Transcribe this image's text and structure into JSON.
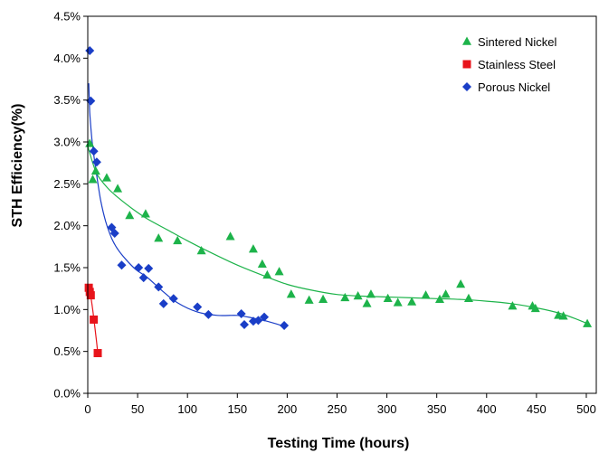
{
  "chart_data": {
    "type": "scatter",
    "title": "",
    "xlabel": "Testing Time (hours)",
    "ylabel": "STH Efficiency(%)",
    "xlim": [
      0,
      510
    ],
    "ylim": [
      0.0,
      4.5
    ],
    "x_ticks": [
      0,
      50,
      100,
      150,
      200,
      250,
      300,
      350,
      400,
      450,
      500
    ],
    "y_ticks": [
      0.0,
      0.5,
      1.0,
      1.5,
      2.0,
      2.5,
      3.0,
      3.5,
      4.0,
      4.5
    ],
    "x_tick_labels": [
      "0",
      "50",
      "100",
      "150",
      "200",
      "250",
      "300",
      "350",
      "400",
      "450",
      "500"
    ],
    "y_tick_labels": [
      "0.0%",
      "0.5%",
      "1.0%",
      "1.5%",
      "2.0%",
      "2.5%",
      "3.0%",
      "3.5%",
      "4.0%",
      "4.5%"
    ],
    "grid": false,
    "legend_position": "top-right",
    "series": [
      {
        "name": "Sintered Nickel",
        "marker": "triangle",
        "color": "#1db34a",
        "x": [
          2,
          5,
          8,
          19,
          30,
          42,
          58,
          71,
          90,
          114,
          143,
          166,
          175,
          180,
          192,
          204,
          222,
          236,
          258,
          271,
          280,
          284,
          301,
          311,
          325,
          339,
          353,
          359,
          374,
          382,
          426,
          446,
          449,
          472,
          477,
          501
        ],
        "y": [
          2.98,
          2.55,
          2.65,
          2.57,
          2.44,
          2.12,
          2.14,
          1.85,
          1.82,
          1.7,
          1.87,
          1.72,
          1.54,
          1.41,
          1.45,
          1.18,
          1.11,
          1.12,
          1.14,
          1.16,
          1.07,
          1.18,
          1.13,
          1.08,
          1.09,
          1.17,
          1.12,
          1.18,
          1.3,
          1.13,
          1.04,
          1.04,
          1.01,
          0.93,
          0.92,
          0.83
        ],
        "trend_x": [
          0,
          5,
          10,
          20,
          30,
          45,
          60,
          80,
          100,
          125,
          150,
          175,
          200,
          225,
          250,
          275,
          300,
          325,
          350,
          375,
          400,
          425,
          450,
          475,
          500
        ],
        "trend_y": [
          2.95,
          2.75,
          2.6,
          2.45,
          2.34,
          2.2,
          2.08,
          1.95,
          1.82,
          1.67,
          1.53,
          1.41,
          1.3,
          1.23,
          1.18,
          1.16,
          1.15,
          1.14,
          1.13,
          1.12,
          1.1,
          1.07,
          1.02,
          0.95,
          0.84
        ]
      },
      {
        "name": "Stainless Steel",
        "marker": "square",
        "color": "#e8141b",
        "x": [
          1,
          2,
          3,
          6,
          10
        ],
        "y": [
          1.26,
          1.21,
          1.17,
          0.88,
          0.48
        ],
        "trend_x": [
          1,
          2,
          3,
          4,
          6,
          8,
          10
        ],
        "trend_y": [
          1.26,
          1.22,
          1.16,
          1.08,
          0.9,
          0.7,
          0.48
        ]
      },
      {
        "name": "Porous Nickel",
        "marker": "diamond",
        "color": "#1a3ec7",
        "x": [
          2,
          3,
          6,
          9,
          24,
          27,
          34,
          51,
          56,
          61,
          71,
          76,
          86,
          110,
          121,
          154,
          157,
          166,
          171,
          177,
          197
        ],
        "y": [
          4.09,
          3.49,
          2.89,
          2.76,
          1.98,
          1.91,
          1.53,
          1.5,
          1.38,
          1.49,
          1.27,
          1.07,
          1.13,
          1.03,
          0.94,
          0.95,
          0.82,
          0.86,
          0.87,
          0.91,
          0.81
        ],
        "trend_x": [
          1,
          2,
          4,
          6,
          9,
          13,
          18,
          24,
          30,
          38,
          48,
          60,
          75,
          90,
          110,
          130,
          150,
          165,
          180,
          197
        ],
        "trend_y": [
          3.7,
          3.35,
          3.05,
          2.85,
          2.6,
          2.3,
          2.05,
          1.85,
          1.72,
          1.6,
          1.48,
          1.38,
          1.22,
          1.08,
          0.97,
          0.93,
          0.93,
          0.9,
          0.86,
          0.8
        ]
      }
    ]
  }
}
